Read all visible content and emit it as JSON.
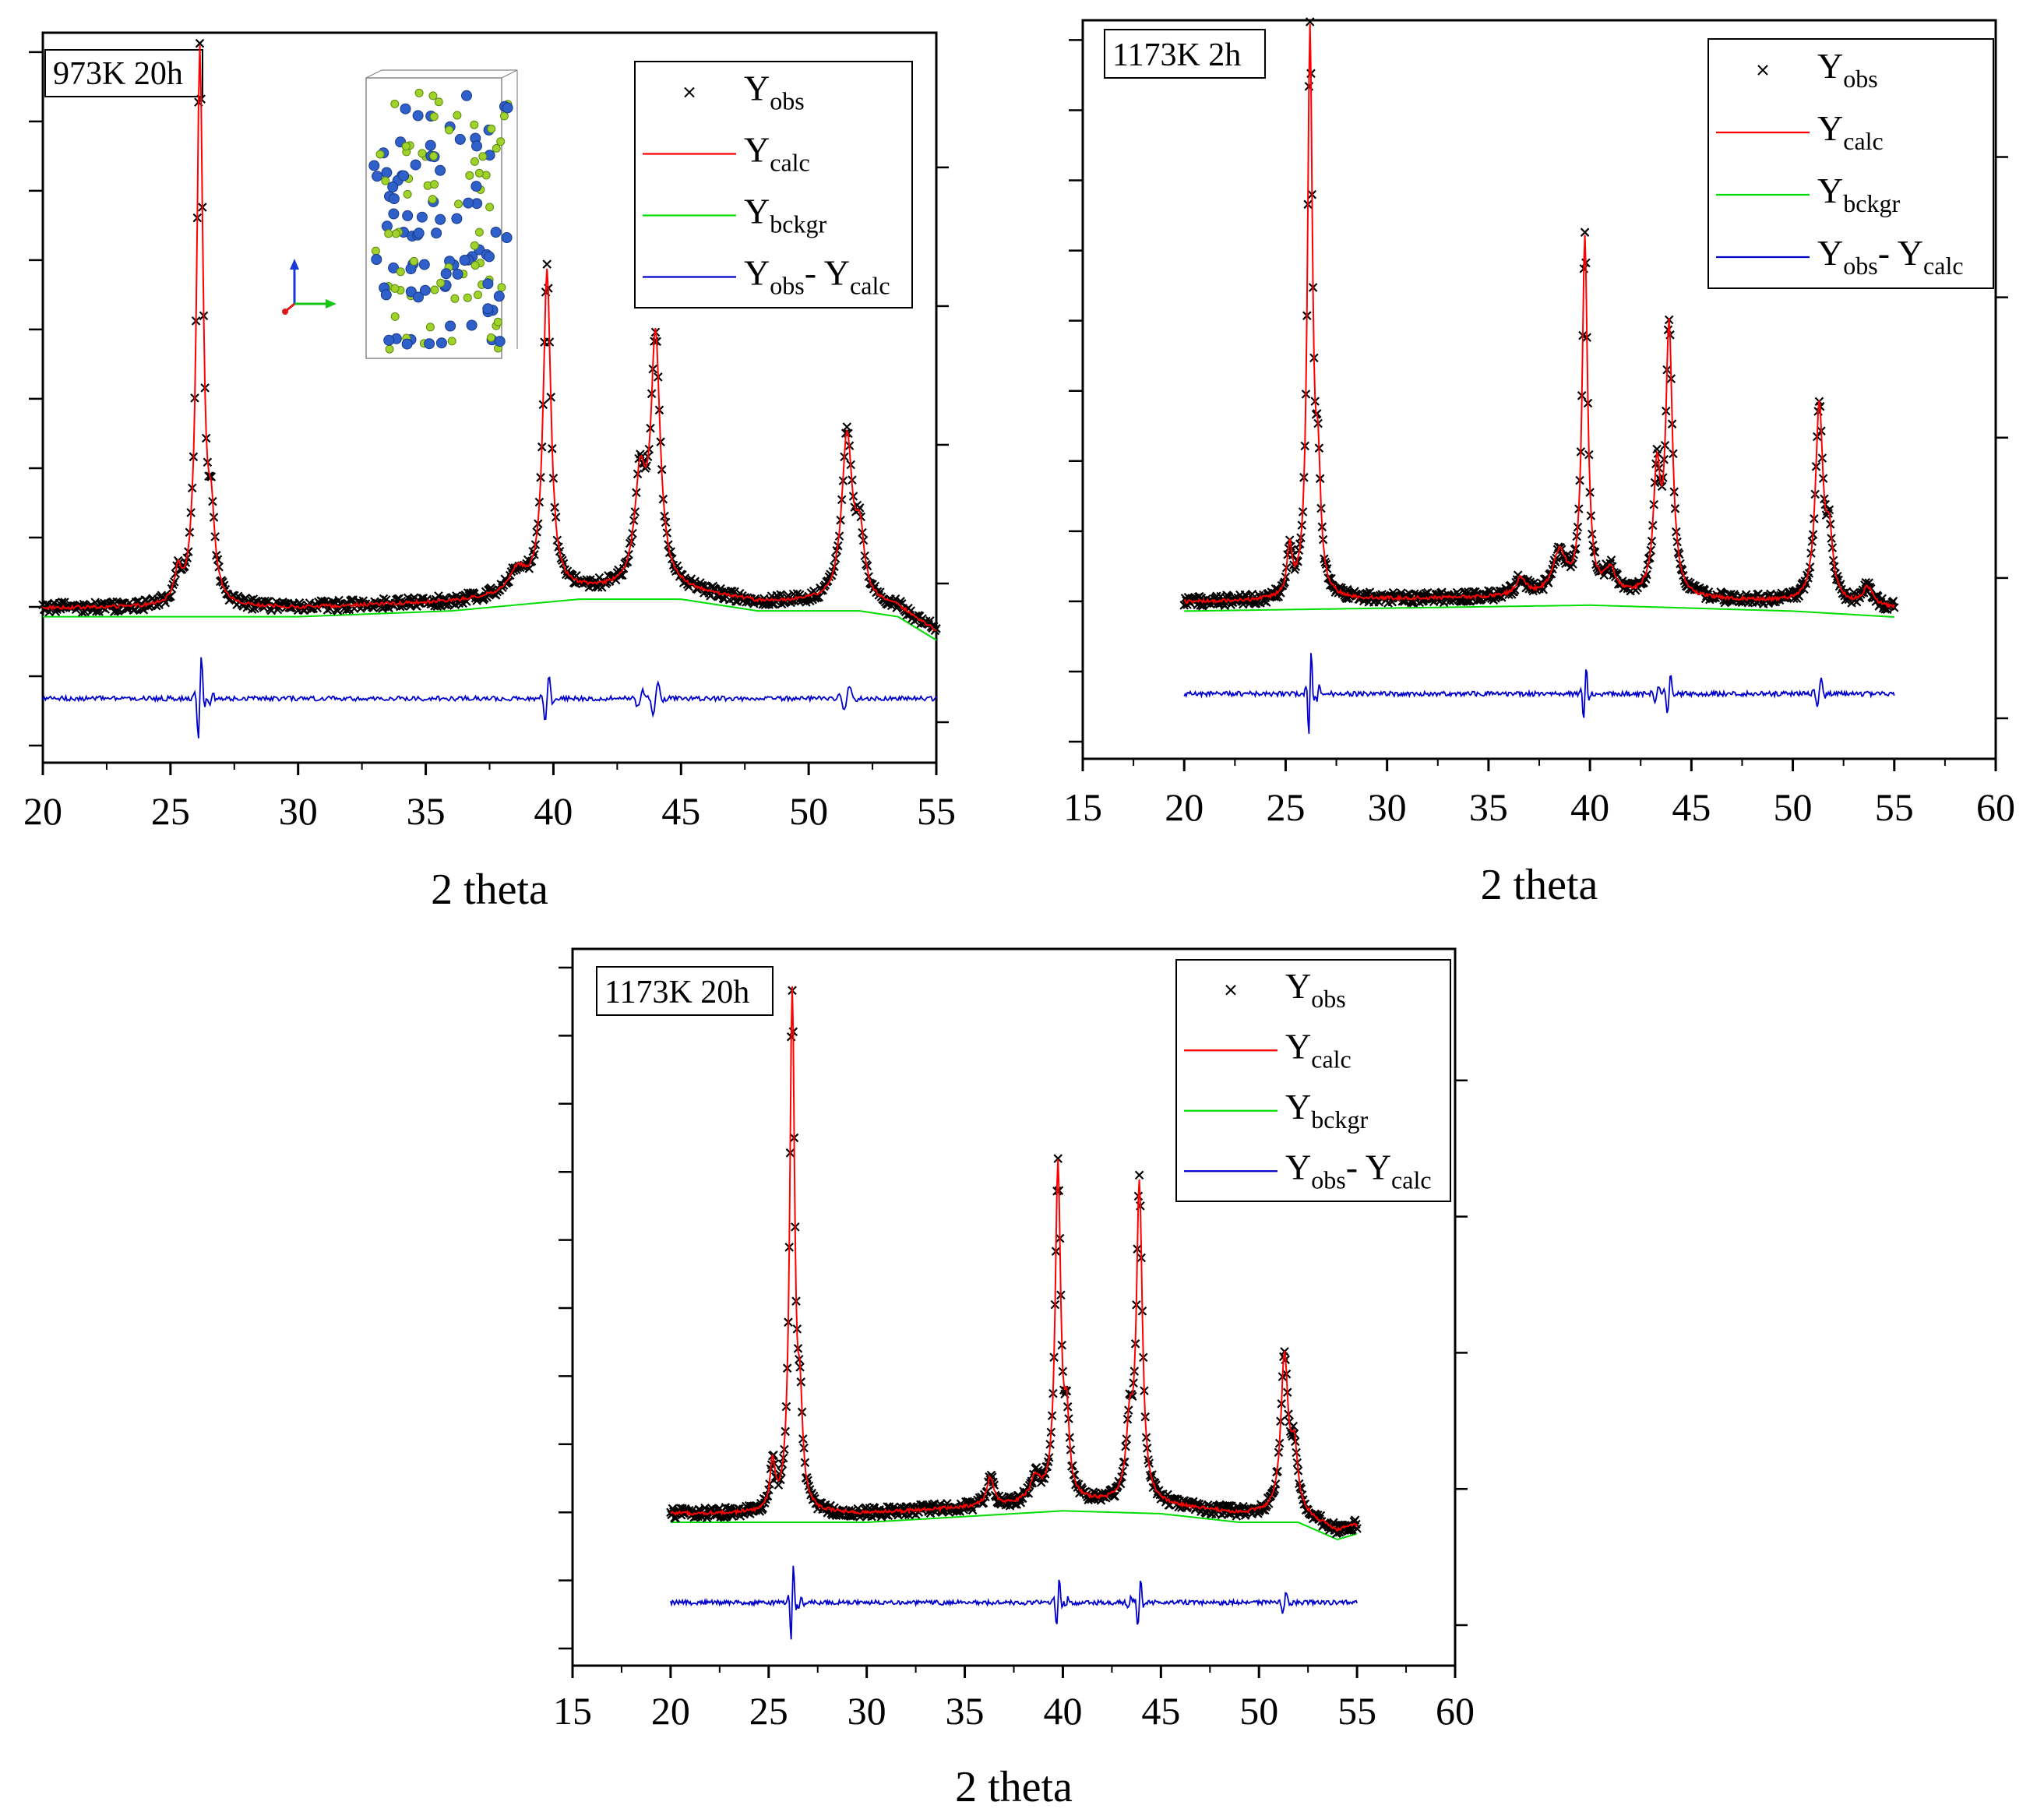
{
  "figure": {
    "description_free": true,
    "legend_entries": {
      "obs": {
        "main": "Y",
        "sub": "obs",
        "color": "#000000"
      },
      "calc": {
        "main": "Y",
        "sub": "calc",
        "color": "#ff0000"
      },
      "bckgr": {
        "main": "Y",
        "sub": "bckgr",
        "color": "#00dd00"
      },
      "diff": {
        "main1": "Y",
        "sub1": "obs",
        "sep": "- ",
        "main2": "Y",
        "sub2": "calc",
        "color": "#0000cc"
      }
    }
  },
  "chart_data": [
    {
      "type": "line",
      "title": "973K 20h",
      "xlabel": "2 theta",
      "ylabel": "",
      "xlim": [
        20,
        55
      ],
      "xticks": [
        20,
        25,
        30,
        35,
        40,
        45,
        50,
        55
      ],
      "xtick_labels": [
        "20",
        "25",
        "30",
        "35",
        "40",
        "45",
        "50",
        "55"
      ],
      "ylim": [
        -0.25,
        1.0
      ],
      "data_range": [
        20,
        55
      ],
      "background": {
        "level": 0.015,
        "points": [
          [
            20,
            0.0
          ],
          [
            30,
            0.0
          ],
          [
            36,
            0.01
          ],
          [
            41,
            0.03
          ],
          [
            45,
            0.03
          ],
          [
            48,
            0.01
          ],
          [
            52,
            0.01
          ],
          [
            53.5,
            0.0
          ],
          [
            55,
            -0.04
          ]
        ]
      },
      "peaks": [
        {
          "center": 25.3,
          "height": 0.05,
          "width": 0.15
        },
        {
          "center": 26.15,
          "height": 0.95,
          "width": 0.15
        },
        {
          "center": 26.6,
          "height": 0.12,
          "width": 0.15
        },
        {
          "center": 38.6,
          "height": 0.04,
          "width": 0.4
        },
        {
          "center": 39.75,
          "height": 0.55,
          "width": 0.18
        },
        {
          "center": 43.4,
          "height": 0.18,
          "width": 0.25
        },
        {
          "center": 44.0,
          "height": 0.42,
          "width": 0.22
        },
        {
          "center": 51.5,
          "height": 0.28,
          "width": 0.25
        },
        {
          "center": 52.0,
          "height": 0.1,
          "width": 0.2
        }
      ],
      "difference_offset": -0.14,
      "series": [
        {
          "name": "Y obs",
          "style": "x-markers",
          "color": "#000000"
        },
        {
          "name": "Y calc",
          "style": "line",
          "color": "#ff0000"
        },
        {
          "name": "Y bckgr",
          "style": "line",
          "color": "#00dd00"
        },
        {
          "name": "Y obs - Y calc",
          "style": "line",
          "color": "#0000cc"
        }
      ],
      "legend_position": "top-right",
      "has_structure_inset": true
    },
    {
      "type": "line",
      "title": "1173K 2h",
      "xlabel": "2 theta",
      "ylabel": "",
      "xlim": [
        15,
        60
      ],
      "xticks": [
        15,
        20,
        25,
        30,
        35,
        40,
        45,
        50,
        55,
        60
      ],
      "xtick_labels": [
        "15",
        "20",
        "25",
        "30",
        "35",
        "40",
        "45",
        "50",
        "55",
        "60"
      ],
      "ylim": [
        -0.25,
        1.0
      ],
      "data_range": [
        20,
        55
      ],
      "background": {
        "level": 0.015,
        "points": [
          [
            20,
            0.0
          ],
          [
            40,
            0.01
          ],
          [
            50,
            0.0
          ],
          [
            55,
            -0.01
          ]
        ]
      },
      "peaks": [
        {
          "center": 25.2,
          "height": 0.08,
          "width": 0.15
        },
        {
          "center": 26.2,
          "height": 0.95,
          "width": 0.15
        },
        {
          "center": 26.6,
          "height": 0.18,
          "width": 0.15
        },
        {
          "center": 36.6,
          "height": 0.03,
          "width": 0.3
        },
        {
          "center": 38.5,
          "height": 0.07,
          "width": 0.4
        },
        {
          "center": 39.75,
          "height": 0.6,
          "width": 0.16
        },
        {
          "center": 41.0,
          "height": 0.04,
          "width": 0.3
        },
        {
          "center": 43.3,
          "height": 0.2,
          "width": 0.2
        },
        {
          "center": 43.9,
          "height": 0.45,
          "width": 0.2
        },
        {
          "center": 51.3,
          "height": 0.33,
          "width": 0.22
        },
        {
          "center": 51.8,
          "height": 0.1,
          "width": 0.2
        },
        {
          "center": 53.7,
          "height": 0.03,
          "width": 0.3
        }
      ],
      "difference_offset": -0.14,
      "series": [
        {
          "name": "Y obs",
          "style": "x-markers",
          "color": "#000000"
        },
        {
          "name": "Y calc",
          "style": "line",
          "color": "#ff0000"
        },
        {
          "name": "Y bckgr",
          "style": "line",
          "color": "#00dd00"
        },
        {
          "name": "Y obs - Y calc",
          "style": "line",
          "color": "#0000cc"
        }
      ],
      "legend_position": "top-right"
    },
    {
      "type": "line",
      "title": "1173K 20h",
      "xlabel": "2 theta",
      "ylabel": "",
      "xlim": [
        15,
        60
      ],
      "xticks": [
        15,
        20,
        25,
        30,
        35,
        40,
        45,
        50,
        55,
        60
      ],
      "xtick_labels": [
        "15",
        "20",
        "25",
        "30",
        "35",
        "40",
        "45",
        "50",
        "55",
        "60"
      ],
      "ylim": [
        -0.25,
        1.0
      ],
      "data_range": [
        20,
        55
      ],
      "background": {
        "level": 0.015,
        "points": [
          [
            20,
            0.0
          ],
          [
            30,
            0.0
          ],
          [
            40,
            0.02
          ],
          [
            45,
            0.015
          ],
          [
            49,
            0.0
          ],
          [
            52,
            0.0
          ],
          [
            54,
            -0.03
          ],
          [
            55,
            -0.02
          ]
        ]
      },
      "peaks": [
        {
          "center": 25.2,
          "height": 0.08,
          "width": 0.15
        },
        {
          "center": 26.2,
          "height": 0.9,
          "width": 0.15
        },
        {
          "center": 26.6,
          "height": 0.15,
          "width": 0.15
        },
        {
          "center": 36.3,
          "height": 0.05,
          "width": 0.2
        },
        {
          "center": 38.6,
          "height": 0.04,
          "width": 0.3
        },
        {
          "center": 39.75,
          "height": 0.58,
          "width": 0.17
        },
        {
          "center": 40.2,
          "height": 0.12,
          "width": 0.15
        },
        {
          "center": 43.4,
          "height": 0.12,
          "width": 0.2
        },
        {
          "center": 43.9,
          "height": 0.55,
          "width": 0.18
        },
        {
          "center": 51.3,
          "height": 0.27,
          "width": 0.22
        },
        {
          "center": 51.8,
          "height": 0.1,
          "width": 0.2
        }
      ],
      "difference_offset": -0.14,
      "series": [
        {
          "name": "Y obs",
          "style": "x-markers",
          "color": "#000000"
        },
        {
          "name": "Y calc",
          "style": "line",
          "color": "#ff0000"
        },
        {
          "name": "Y bckgr",
          "style": "line",
          "color": "#00dd00"
        },
        {
          "name": "Y obs - Y calc",
          "style": "line",
          "color": "#0000cc"
        }
      ],
      "legend_position": "top-right"
    }
  ]
}
